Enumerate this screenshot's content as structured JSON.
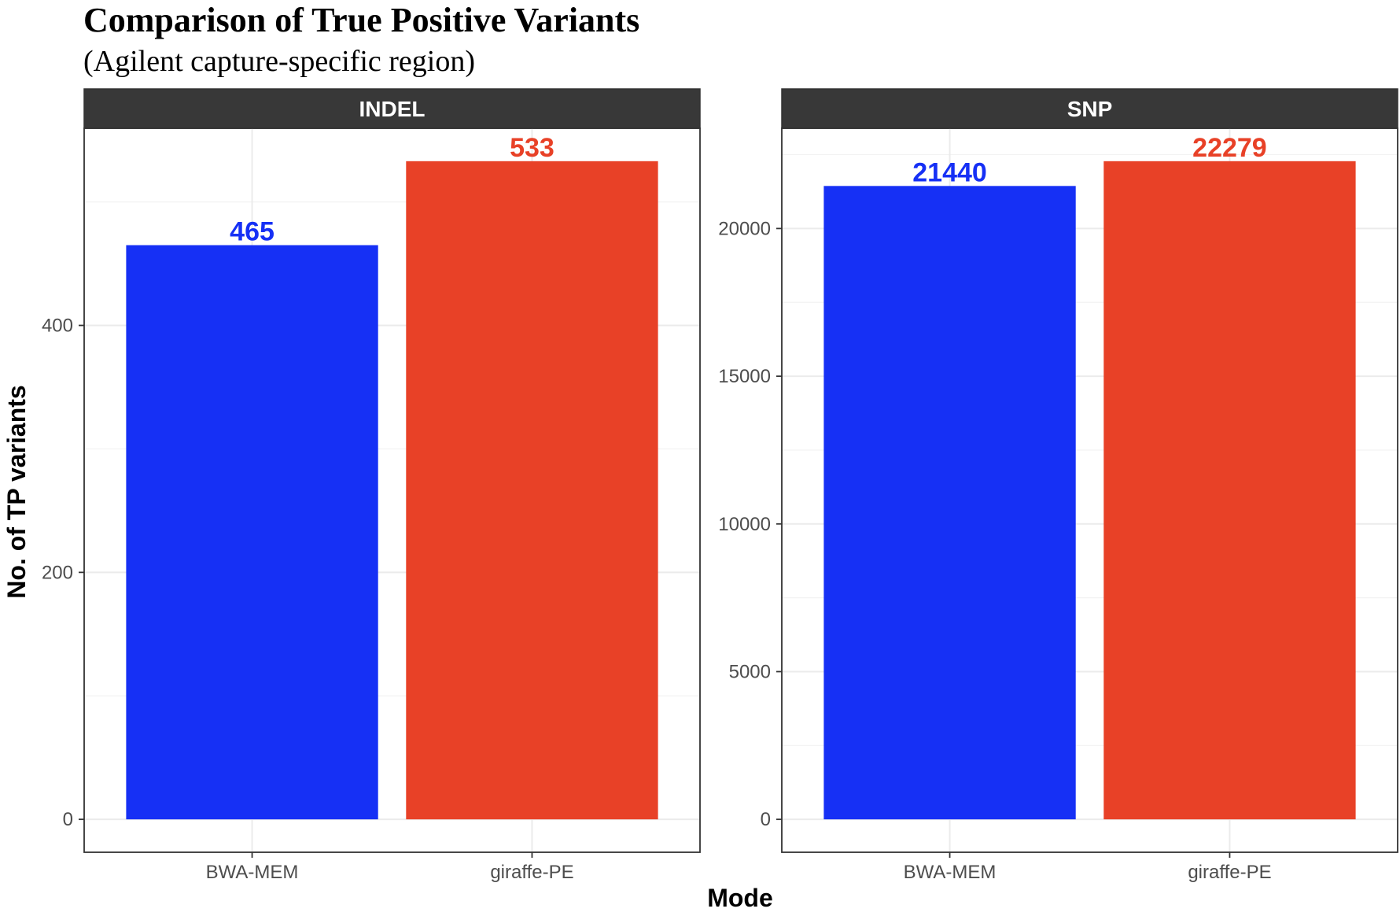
{
  "chart_data": {
    "type": "bar",
    "title": "Comparison of True Positive Variants",
    "subtitle": "(Agilent capture-specific region)",
    "xlabel": "Mode",
    "ylabel": "No. of TP variants",
    "categories": [
      "BWA-MEM",
      "giraffe-PE"
    ],
    "colors": {
      "BWA-MEM": "#1630f5",
      "giraffe-PE": "#e84127"
    },
    "strip_color": "#383838",
    "grid": true,
    "legend": "none",
    "panels": [
      {
        "label": "INDEL",
        "values": [
          465,
          533
        ],
        "data_labels": [
          "465",
          "533"
        ],
        "ylim": [
          -26.65,
          559.65
        ],
        "yticks": [
          0,
          200,
          400
        ],
        "ytick_labels": [
          "0",
          "200",
          "400"
        ],
        "minor_yticks": [
          100,
          300,
          500
        ]
      },
      {
        "label": "SNP",
        "values": [
          21440,
          22279
        ],
        "data_labels": [
          "21440",
          "22279"
        ],
        "ylim": [
          -1113.95,
          23392.95
        ],
        "yticks": [
          0,
          5000,
          10000,
          15000,
          20000
        ],
        "ytick_labels": [
          "0",
          "5000",
          "10000",
          "15000",
          "20000"
        ],
        "minor_yticks": [
          2500,
          7500,
          12500,
          17500,
          22500
        ]
      }
    ]
  }
}
